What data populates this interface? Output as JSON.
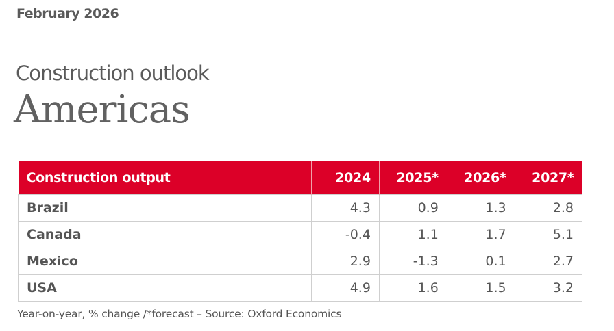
{
  "date": "February 2026",
  "subtitle": "Construction outlook",
  "title": "Americas",
  "table": {
    "headers": [
      "Construction output",
      "2024",
      "2025*",
      "2026*",
      "2027*"
    ],
    "rows": [
      [
        "Brazil",
        "4.3",
        "0.9",
        "1.3",
        "2.8"
      ],
      [
        "Canada",
        "-0.4",
        "1.1",
        "1.7",
        "5.1"
      ],
      [
        "Mexico",
        "2.9",
        "-1.3",
        "0.1",
        "2.7"
      ],
      [
        "USA",
        "4.9",
        "1.6",
        "1.5",
        "3.2"
      ]
    ]
  },
  "note": "Year-on-year, % change /*forecast – Source: Oxford Economics",
  "colors": {
    "header_bg": "#dc0028",
    "text": "#595959"
  }
}
